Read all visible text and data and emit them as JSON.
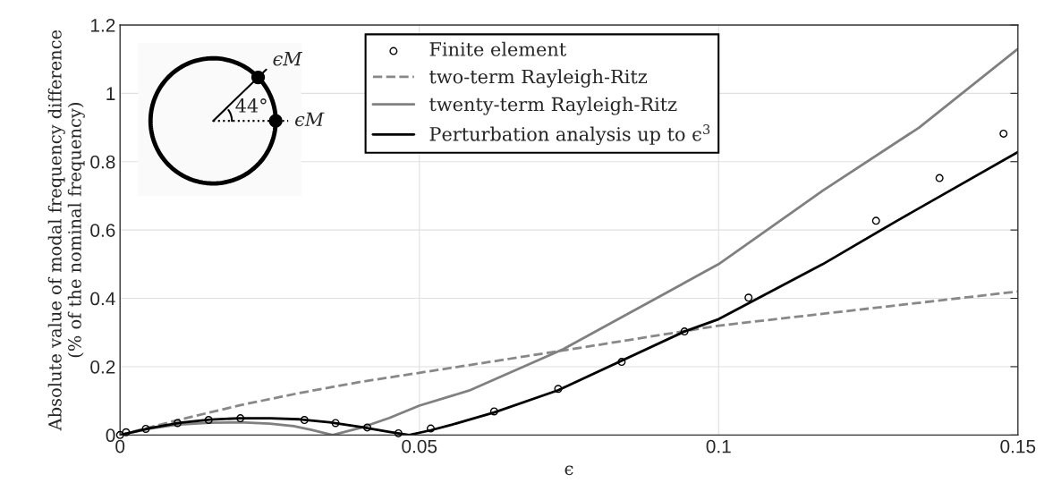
{
  "chart_data": {
    "type": "line",
    "xlabel": "ϵ",
    "ylabel": "Absolute value of modal frequency difference\n(% of the nominal frequency)",
    "xlim": [
      0,
      0.15
    ],
    "ylim": [
      0,
      1.2
    ],
    "xticks": [
      0,
      0.05,
      0.1,
      0.15
    ],
    "yticks": [
      0,
      0.2,
      0.4,
      0.6,
      0.8,
      1,
      1.2
    ],
    "grid": true,
    "legend": "top",
    "series": [
      {
        "name": "Finite element",
        "type": "scatter",
        "marker": "circle",
        "color": "#000000",
        "x": [
          0.0,
          0.001,
          0.0043,
          0.0096,
          0.0148,
          0.0201,
          0.0308,
          0.036,
          0.0413,
          0.0465,
          0.0519,
          0.0625,
          0.0732,
          0.0838,
          0.0943,
          0.105,
          0.1263,
          0.1369,
          0.1476
        ],
        "values": [
          0.0,
          0.008,
          0.018,
          0.035,
          0.044,
          0.049,
          0.044,
          0.035,
          0.022,
          0.005,
          0.019,
          0.069,
          0.135,
          0.214,
          0.303,
          0.402,
          0.627,
          0.752,
          0.882
        ]
      },
      {
        "name": "two-term Rayleigh-Ritz",
        "line_style": "dashed",
        "color": "#888888",
        "x": [
          0,
          0.01,
          0.02,
          0.03,
          0.04,
          0.05,
          0.075,
          0.1,
          0.125,
          0.15
        ],
        "values": [
          0,
          0.045,
          0.087,
          0.123,
          0.155,
          0.182,
          0.25,
          0.32,
          0.37,
          0.42
        ]
      },
      {
        "name": "twenty-term Rayleigh-Ritz",
        "line_style": "solid",
        "color": "#808080",
        "x": [
          0,
          0.005,
          0.01,
          0.015,
          0.02,
          0.025,
          0.029,
          0.032,
          0.0355,
          0.04,
          0.045,
          0.05,
          0.0583,
          0.074,
          0.1,
          0.1174,
          0.1335,
          0.15
        ],
        "values": [
          0,
          0.019,
          0.031,
          0.036,
          0.037,
          0.033,
          0.026,
          0.015,
          0,
          0.02,
          0.05,
          0.086,
          0.13,
          0.251,
          0.5,
          0.715,
          0.9,
          1.13
        ]
      },
      {
        "name": "Perturbation analysis up to ϵ$^{3}$",
        "line_style": "solid",
        "color": "#000000",
        "x": [
          0,
          0.005,
          0.01,
          0.015,
          0.02,
          0.025,
          0.03,
          0.035,
          0.04,
          0.045,
          0.0483,
          0.0519,
          0.0554,
          0.0625,
          0.0732,
          0.0943,
          0.1,
          0.1174,
          0.1298,
          0.15
        ],
        "values": [
          0,
          0.02,
          0.036,
          0.045,
          0.049,
          0.049,
          0.046,
          0.037,
          0.024,
          0.009,
          0,
          0.014,
          0.03,
          0.066,
          0.131,
          0.303,
          0.339,
          0.5,
          0.627,
          0.828
        ]
      }
    ],
    "annotations": [
      "ϵM",
      "ϵM",
      "44°"
    ]
  }
}
